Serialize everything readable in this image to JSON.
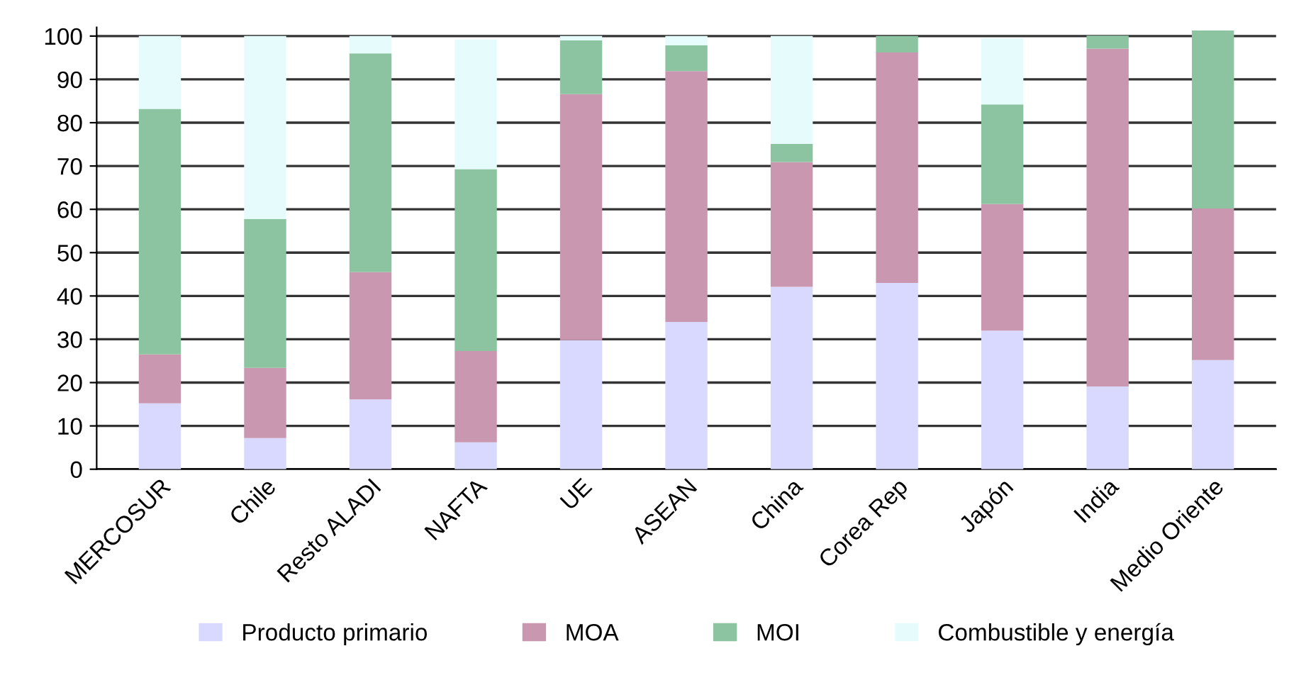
{
  "chart_data": {
    "type": "bar",
    "stacked": true,
    "categories": [
      "MERCOSUR",
      "Chile",
      "Resto ALADI",
      "NAFTA",
      "UE",
      "ASEAN",
      "China",
      "Corea Rep",
      "Japón",
      "India",
      "Medio Oriente"
    ],
    "series": [
      {
        "name": "Producto primario",
        "color": "#d9d9ff",
        "values": [
          15.2,
          7.2,
          16.1,
          6.2,
          29.8,
          34.0,
          42.1,
          43.0,
          32.0,
          19.1,
          25.2
        ]
      },
      {
        "name": "MOA",
        "color": "#c998b0",
        "values": [
          11.3,
          16.2,
          29.4,
          21.1,
          56.8,
          57.9,
          28.8,
          53.2,
          29.2,
          78.0,
          35.0
        ]
      },
      {
        "name": "MOI",
        "color": "#8cc4a2",
        "values": [
          56.7,
          34.4,
          50.5,
          42.0,
          12.4,
          6.0,
          4.2,
          3.8,
          23.0,
          3.0,
          41.1
        ]
      },
      {
        "name": "Combustible y energía",
        "color": "#e6fcfc",
        "values": [
          16.8,
          42.2,
          4.0,
          29.9,
          1.0,
          2.1,
          24.9,
          0,
          15.3,
          0,
          0
        ]
      }
    ],
    "ylim": [
      0,
      102
    ],
    "yticks": [
      0,
      10,
      20,
      30,
      40,
      50,
      60,
      70,
      80,
      90,
      100
    ],
    "grid": "y",
    "legend": "bottom"
  }
}
